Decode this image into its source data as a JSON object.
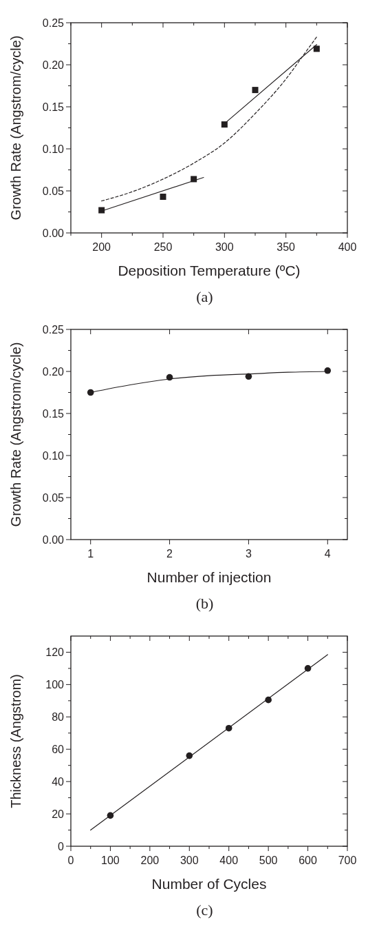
{
  "chart_data": [
    {
      "type": "scatter",
      "xlabel": "Deposition Temperature (ºC)",
      "ylabel": "Growth Rate (Angstrom/cycle)",
      "annotations": [
        "(a)"
      ],
      "xlim": [
        175,
        400
      ],
      "xticks": [
        {
          "value": 175,
          "label": null
        },
        200,
        {
          "value": 225,
          "label": null
        },
        250,
        {
          "value": 275,
          "label": null
        },
        300,
        {
          "value": 325,
          "label": null
        },
        350,
        {
          "value": 375,
          "label": null
        },
        400
      ],
      "ylim": [
        0,
        0.25
      ],
      "yticks": [
        {
          "value": 0,
          "label": "0.00"
        },
        {
          "value": 0.025,
          "label": null
        },
        {
          "value": 0.05,
          "label": "0.05"
        },
        {
          "value": 0.075,
          "label": null
        },
        {
          "value": 0.1,
          "label": "0.10"
        },
        {
          "value": 0.125,
          "label": null
        },
        {
          "value": 0.15,
          "label": "0.15"
        },
        {
          "value": 0.175,
          "label": null
        },
        {
          "value": 0.2,
          "label": "0.20"
        },
        {
          "value": 0.225,
          "label": null
        },
        {
          "value": 0.25,
          "label": "0.25"
        }
      ],
      "grid": false,
      "series": [
        {
          "type": "scatter",
          "marker": "square",
          "color": "#231f20",
          "x": [
            200,
            250,
            275,
            300,
            325,
            375
          ],
          "values": [
            0.027,
            0.043,
            0.064,
            0.129,
            0.17,
            0.219
          ]
        },
        {
          "type": "line",
          "marker": "none",
          "line_style": "solid",
          "color": "#231f20",
          "x": [
            200,
            283
          ],
          "values": [
            0.026,
            0.066
          ]
        },
        {
          "type": "line",
          "marker": "none",
          "line_style": "solid",
          "color": "#231f20",
          "x": [
            300,
            375
          ],
          "values": [
            0.13,
            0.224
          ]
        },
        {
          "type": "line",
          "marker": "none",
          "line_style": "dashed",
          "color": "#231f20",
          "x": [
            200,
            225,
            250,
            275,
            300,
            325,
            350,
            365,
            375
          ],
          "values": [
            0.038,
            0.049,
            0.064,
            0.083,
            0.107,
            0.142,
            0.183,
            0.213,
            0.233
          ]
        }
      ]
    },
    {
      "type": "scatter",
      "xlabel": "Number of injection",
      "ylabel": "Growth Rate (Angstrom/cycle)",
      "annotations": [
        "(b)"
      ],
      "xlim": [
        0.75,
        4.25
      ],
      "xticks": [
        1,
        2,
        3,
        4
      ],
      "ylim": [
        0,
        0.25
      ],
      "yticks": [
        {
          "value": 0,
          "label": "0.00"
        },
        {
          "value": 0.025,
          "label": null
        },
        {
          "value": 0.05,
          "label": "0.05"
        },
        {
          "value": 0.075,
          "label": null
        },
        {
          "value": 0.1,
          "label": "0.10"
        },
        {
          "value": 0.125,
          "label": null
        },
        {
          "value": 0.15,
          "label": "0.15"
        },
        {
          "value": 0.175,
          "label": null
        },
        {
          "value": 0.2,
          "label": "0.20"
        },
        {
          "value": 0.225,
          "label": null
        },
        {
          "value": 0.25,
          "label": "0.25"
        }
      ],
      "grid": false,
      "series": [
        {
          "type": "scatter",
          "marker": "circle",
          "color": "#231f20",
          "x": [
            1,
            2,
            3,
            4
          ],
          "values": [
            0.175,
            0.193,
            0.194,
            0.201
          ]
        },
        {
          "type": "line",
          "marker": "none",
          "line_style": "solid",
          "color": "#231f20",
          "x": [
            1,
            1.5,
            2,
            2.5,
            3,
            3.5,
            4
          ],
          "values": [
            0.175,
            0.184,
            0.191,
            0.195,
            0.197,
            0.199,
            0.2
          ]
        }
      ]
    },
    {
      "type": "scatter",
      "xlabel": "Number of Cycles",
      "ylabel": "Thickness (Angstrom)",
      "annotations": [
        "(c)"
      ],
      "xlim": [
        0,
        700
      ],
      "xticks": [
        0,
        {
          "value": 50,
          "label": null
        },
        100,
        {
          "value": 150,
          "label": null
        },
        200,
        {
          "value": 250,
          "label": null
        },
        300,
        {
          "value": 350,
          "label": null
        },
        400,
        {
          "value": 450,
          "label": null
        },
        500,
        {
          "value": 550,
          "label": null
        },
        600,
        {
          "value": 650,
          "label": null
        },
        700
      ],
      "ylim": [
        0,
        130
      ],
      "yticks": [
        0,
        {
          "value": 10,
          "label": null
        },
        20,
        {
          "value": 30,
          "label": null
        },
        40,
        {
          "value": 50,
          "label": null
        },
        60,
        {
          "value": 70,
          "label": null
        },
        80,
        {
          "value": 90,
          "label": null
        },
        100,
        {
          "value": 110,
          "label": null
        },
        120
      ],
      "grid": false,
      "series": [
        {
          "type": "scatter",
          "marker": "circle",
          "color": "#231f20",
          "x": [
            100,
            300,
            400,
            500,
            600
          ],
          "values": [
            19,
            56,
            73,
            90.5,
            110
          ]
        },
        {
          "type": "line",
          "marker": "none",
          "line_style": "solid",
          "color": "#231f20",
          "x": [
            50,
            650
          ],
          "values": [
            10,
            118.5
          ]
        }
      ]
    }
  ]
}
